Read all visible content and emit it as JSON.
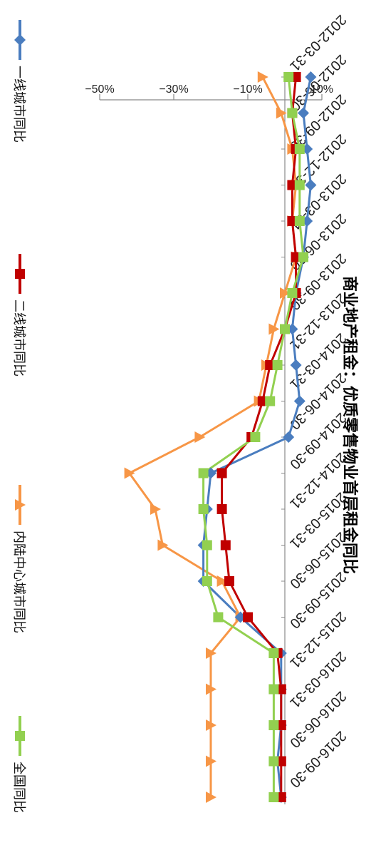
{
  "chart_data": {
    "type": "line",
    "title": "商业地产租金：优质零售物业首层租金同比",
    "xlabel": "",
    "ylabel": "",
    "ylim": [
      -50,
      10
    ],
    "y_ticks": [
      10,
      -10,
      -30,
      -50
    ],
    "y_tick_labels": [
      "10%",
      "−10%",
      "−30%",
      "−50%"
    ],
    "x_ticks": [
      "2012-03-31",
      "2012-06-30",
      "2012-09-30",
      "2012-12-31",
      "2013-03-31",
      "2013-06-30",
      "2013-09-30",
      "2013-12-31",
      "2014-03-31",
      "2014-06-30",
      "2014-09-30",
      "2014-12-31",
      "2015-03-31",
      "2015-06-30",
      "2015-09-30",
      "2015-12-31",
      "2016-03-31",
      "2016-06-30",
      "2016-09-30"
    ],
    "grid": false,
    "legend_position": "bottom",
    "x": [
      0,
      1,
      2,
      3,
      4,
      5,
      6,
      7,
      8,
      9,
      10,
      11,
      12,
      13,
      14,
      15,
      16,
      17,
      18,
      19,
      20
    ],
    "series": [
      {
        "name": "一线城市同比",
        "color": "#4a7dbf",
        "marker": "diamond",
        "values": [
          7,
          5,
          6,
          7,
          6,
          5,
          3,
          2,
          3,
          4,
          1,
          -20,
          -21,
          -22,
          -22,
          -12,
          -1,
          -1,
          -1,
          -2,
          -1
        ]
      },
      {
        "name": "二线城市同比",
        "color": "#c00000",
        "marker": "square",
        "values": [
          3,
          2,
          3,
          2,
          2,
          3,
          3,
          0,
          -4,
          -6,
          -9,
          -17,
          -17,
          -16,
          -15,
          -10,
          -2,
          -1,
          -1,
          -1,
          -1
        ]
      },
      {
        "name": "内陆中心城市同比",
        "color": "#f79646",
        "marker": "triangle",
        "values": [
          -6,
          -1,
          2,
          3,
          2,
          3,
          0,
          -3,
          -5,
          -7,
          -23,
          -42,
          -35,
          -33,
          -17,
          -12,
          -20,
          -20,
          -20,
          -20,
          -20
        ]
      },
      {
        "name": "全国同比",
        "color": "#92d050",
        "marker": "square",
        "values": [
          1,
          2,
          4,
          4,
          4,
          5,
          2,
          0,
          -2,
          -4,
          -8,
          -22,
          -22,
          -21,
          -21,
          -18,
          -3,
          -3,
          -3,
          -3,
          -3
        ]
      }
    ]
  }
}
